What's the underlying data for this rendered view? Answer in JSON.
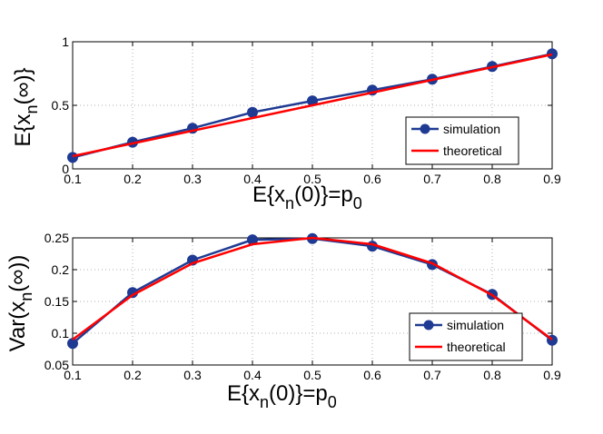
{
  "chart_data": [
    {
      "type": "line",
      "xlabel_main": "E{x",
      "xlabel_sub": "n",
      "xlabel_rest": "(0)}=p",
      "xlabel_sub2": "0",
      "ylabel_main": "E{x",
      "ylabel_sub": "n",
      "ylabel_rest": "(∞)}",
      "xlim": [
        0.1,
        0.9
      ],
      "ylim": [
        0,
        1
      ],
      "xticks": [
        "0.1",
        "0.2",
        "0.3",
        "0.4",
        "0.5",
        "0.6",
        "0.7",
        "0.8",
        "0.9"
      ],
      "yticks": [
        "0",
        "0.5",
        "1"
      ],
      "grid": true,
      "legend_position": "bottom-right",
      "x": [
        0.1,
        0.2,
        0.3,
        0.4,
        0.5,
        0.6,
        0.7,
        0.8,
        0.9
      ],
      "series": [
        {
          "name": "simulation",
          "color": "#1f3a93",
          "marker": "circle",
          "values": [
            0.09,
            0.21,
            0.32,
            0.445,
            0.535,
            0.62,
            0.705,
            0.805,
            0.905
          ]
        },
        {
          "name": "theoretical",
          "color": "#ff0000",
          "marker": "none",
          "values": [
            0.1,
            0.2,
            0.3,
            0.4,
            0.5,
            0.6,
            0.7,
            0.8,
            0.9
          ]
        }
      ]
    },
    {
      "type": "line",
      "xlabel_main": "E{x",
      "xlabel_sub": "n",
      "xlabel_rest": "(0)}=p",
      "xlabel_sub2": "0",
      "ylabel_main": "Var(x",
      "ylabel_sub": "n",
      "ylabel_rest": "(∞))",
      "xlim": [
        0.1,
        0.9
      ],
      "ylim": [
        0.05,
        0.25
      ],
      "xticks": [
        "0.1",
        "0.2",
        "0.3",
        "0.4",
        "0.5",
        "0.6",
        "0.7",
        "0.8",
        "0.9"
      ],
      "yticks": [
        "0.05",
        "0.1",
        "0.15",
        "0.2",
        "0.25"
      ],
      "grid": true,
      "legend_position": "bottom-right",
      "x": [
        0.1,
        0.2,
        0.3,
        0.4,
        0.5,
        0.6,
        0.7,
        0.8,
        0.9
      ],
      "series": [
        {
          "name": "simulation",
          "color": "#1f3a93",
          "marker": "circle",
          "values": [
            0.084,
            0.164,
            0.215,
            0.247,
            0.249,
            0.237,
            0.208,
            0.161,
            0.089
          ]
        },
        {
          "name": "theoretical",
          "color": "#ff0000",
          "marker": "none",
          "values": [
            0.09,
            0.16,
            0.21,
            0.24,
            0.25,
            0.24,
            0.21,
            0.16,
            0.09
          ]
        }
      ]
    }
  ]
}
